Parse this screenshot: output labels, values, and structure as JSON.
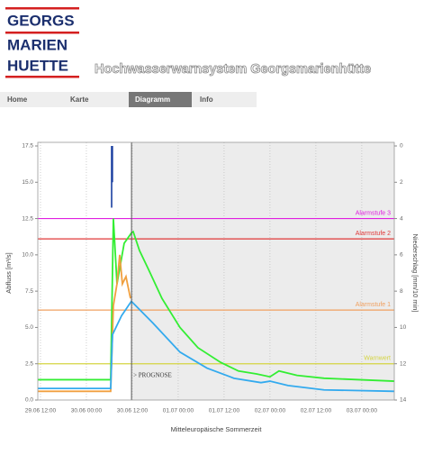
{
  "header": {
    "logo": [
      "GEORGS",
      "MARIEN",
      "HUETTE"
    ],
    "title": "Hochwasserwarnsystem Georgsmarienhütte"
  },
  "nav": [
    "Home",
    "Karte",
    "Diagramm",
    "Info"
  ],
  "chart_data": {
    "type": "line",
    "x_label": "Mitteleuropäische Sommerzeit",
    "y_label": "Abfluss [m³/s]",
    "y2_label": "Niederschlag [mm/10 min]",
    "annotation": "> PROGNOSE",
    "prognose_x": 35.8,
    "xlim": [
      11.3,
      104.5
    ],
    "xticks": [
      {
        "value": 12,
        "label": "29.06 12:00"
      },
      {
        "value": 24,
        "label": "30.06 00:00"
      },
      {
        "value": 36,
        "label": "30.06 12:00"
      },
      {
        "value": 48,
        "label": "01.07 00:00"
      },
      {
        "value": 60,
        "label": "01.07 12:00"
      },
      {
        "value": 72,
        "label": "02.07 00:00"
      },
      {
        "value": 84,
        "label": "02.07 12:00"
      },
      {
        "value": 96,
        "label": "03.07 00:00"
      }
    ],
    "ylim": [
      0,
      17.5
    ],
    "yticks": [
      {
        "value": 0,
        "label": "0.0"
      },
      2.5,
      {
        "value": 5,
        "label": "5.0"
      },
      7.5,
      {
        "value": 10,
        "label": "10.0"
      },
      12.5,
      {
        "value": 15,
        "label": "15.0"
      },
      17.5
    ],
    "y2lim": [
      14,
      0
    ],
    "y2ticks": [
      0,
      2,
      4,
      6,
      8,
      10,
      12,
      14
    ],
    "grid": true,
    "thresholds": [
      {
        "name": "Alarmstufe 3",
        "value": 12.5,
        "color": "#e020e0"
      },
      {
        "name": "Alarmstufe 2",
        "value": 11.1,
        "color": "#e03838"
      },
      {
        "name": "Alarmstufe 1",
        "value": 6.2,
        "color": "#f0a060"
      },
      {
        "name": "Warnwert",
        "value": 2.5,
        "color": "#d4d440"
      }
    ],
    "series": [
      {
        "color": "#1a3fa0",
        "type": "bar",
        "axis": "y2",
        "x": [
          30.6,
          30.8
        ],
        "values": [
          3.4,
          2.0
        ]
      },
      {
        "color": "#33ee33",
        "x": [
          11.3,
          30.35,
          31.06,
          32.0,
          33.88,
          35.76,
          36.24,
          37.88,
          40.24,
          43.76,
          48.47,
          53.18,
          59.06,
          63.76,
          68.47,
          72.0,
          74.35,
          79.06,
          86.12,
          104.5
        ],
        "values": [
          1.4,
          1.4,
          12.5,
          8.0,
          10.8,
          11.5,
          11.6,
          10.3,
          9.0,
          7.0,
          5.0,
          3.6,
          2.6,
          2.0,
          1.8,
          1.6,
          2.0,
          1.7,
          1.5,
          1.3
        ]
      },
      {
        "color": "#f0a040",
        "x": [
          11.3,
          30.35,
          31.06,
          32.0,
          32.71,
          33.41,
          34.35,
          35.53
        ],
        "values": [
          0.6,
          0.6,
          6.5,
          8.0,
          10.0,
          8.0,
          8.5,
          7.0
        ]
      },
      {
        "color": "#33aaee",
        "x": [
          11.3,
          30.35,
          30.82,
          33.18,
          35.76,
          41.41,
          48.47,
          55.53,
          62.59,
          69.65,
          72.0,
          76.71,
          86.12,
          104.5
        ],
        "values": [
          0.8,
          0.8,
          4.5,
          5.8,
          6.8,
          5.3,
          3.3,
          2.2,
          1.5,
          1.2,
          1.3,
          1.0,
          0.7,
          0.6
        ]
      }
    ]
  }
}
